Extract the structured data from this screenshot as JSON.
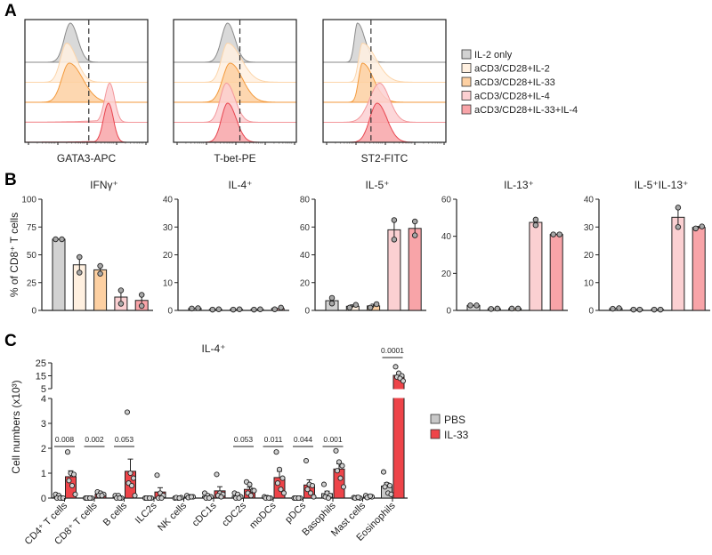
{
  "panels": {
    "a": "A",
    "b": "B",
    "c": "C"
  },
  "colors": {
    "groups_fill": [
      "#d2d2d2",
      "#fff0e0",
      "#fdd0a2",
      "#fbd0d2",
      "#f8a4a8"
    ],
    "groups_stroke": [
      "#8a8a8a",
      "#fcd5aa",
      "#f39a3c",
      "#f3979b",
      "#e8454f"
    ],
    "pbs": "#c8c8c8",
    "il33": "#ee4449"
  },
  "chart_data": [
    {
      "type": "area",
      "title": "",
      "description_units": "relative log fluorescence (0-100)",
      "legend_position": "right",
      "legend": [
        "IL-2 only",
        "aCD3/CD28+IL-2",
        "aCD3/CD28+IL-33",
        "aCD3/CD28+IL-4",
        "aCD3/CD28+IL-33+IL-4"
      ],
      "histograms": [
        {
          "xlabel": "GATA3-APC",
          "gate": 52,
          "series": [
            {
              "mu": 37,
              "sl": 5,
              "sr": 6
            },
            {
              "mu": 34,
              "sl": 5,
              "sr": 8
            },
            {
              "mu": 36,
              "sl": 6,
              "sr": 11
            },
            {
              "mu": 69,
              "sl": 4,
              "sr": 4,
              "tail": 0.06
            },
            {
              "mu": 68,
              "sl": 4,
              "sr": 4,
              "tail": 0.03
            }
          ]
        },
        {
          "xlabel": "T-bet-PE",
          "gate": 54,
          "series": [
            {
              "mu": 44,
              "sl": 5,
              "sr": 6
            },
            {
              "mu": 44,
              "sl": 5,
              "sr": 11
            },
            {
              "mu": 46,
              "sl": 6,
              "sr": 10
            },
            {
              "mu": 43,
              "sl": 5,
              "sr": 7
            },
            {
              "mu": 44,
              "sl": 5,
              "sr": 7
            }
          ]
        },
        {
          "xlabel": "ST2-FITC",
          "gate": 39,
          "series": [
            {
              "mu": 28,
              "sl": 2.5,
              "sr": 6
            },
            {
              "mu": 32,
              "sl": 3,
              "sr": 11
            },
            {
              "mu": 32,
              "sl": 3,
              "sr": 9
            },
            {
              "mu": 46,
              "sl": 8,
              "sr": 8
            },
            {
              "mu": 44,
              "sl": 6,
              "sr": 8
            }
          ]
        }
      ]
    },
    {
      "type": "bar",
      "ylabel": "% of CD8⁺ T cells",
      "subplots": [
        {
          "title": "IFNγ⁺",
          "ylim": [
            0,
            100
          ],
          "yticks": [
            0,
            25,
            50,
            75,
            100
          ],
          "points": [
            [
              64,
              64
            ],
            [
              48,
              34
            ],
            [
              40,
              33
            ],
            [
              18,
              6
            ],
            [
              14,
              4
            ]
          ]
        },
        {
          "title": "IL-4⁺",
          "ylim": [
            0,
            40
          ],
          "yticks": [
            0,
            10,
            20,
            30,
            40
          ],
          "points": [
            [
              0.7,
              0.8
            ],
            [
              0.3,
              0.4
            ],
            [
              0.3,
              0.4
            ],
            [
              0.3,
              0.4
            ],
            [
              0.4,
              1.0
            ]
          ]
        },
        {
          "title": "IL-5⁺",
          "ylim": [
            0,
            80
          ],
          "yticks": [
            0,
            20,
            40,
            60,
            80
          ],
          "points": [
            [
              9,
              5
            ],
            [
              2,
              4
            ],
            [
              2,
              4.5
            ],
            [
              65,
              51
            ],
            [
              64,
              54
            ]
          ]
        },
        {
          "title": "IL-13⁺",
          "ylim": [
            0,
            60
          ],
          "yticks": [
            0,
            20,
            40,
            60
          ],
          "points": [
            [
              2.7,
              2.7
            ],
            [
              0.8,
              1.0
            ],
            [
              1.0,
              1.0
            ],
            [
              49,
              46
            ],
            [
              41,
              41
            ]
          ]
        },
        {
          "title": "IL-5⁺IL-13⁺",
          "ylim": [
            0,
            40
          ],
          "yticks": [
            0,
            10,
            20,
            30,
            40
          ],
          "points": [
            [
              0.6,
              0.8
            ],
            [
              0.3,
              0.3
            ],
            [
              0.3,
              0.3
            ],
            [
              37,
              30
            ],
            [
              29.5,
              30.2
            ]
          ]
        }
      ]
    },
    {
      "type": "bar",
      "title": "IL-4⁺",
      "ylabel": "Cell numbers (x10³)",
      "ylim_lower": [
        0,
        4
      ],
      "yticks_lower": [
        0,
        1,
        2,
        3,
        4
      ],
      "ylim_upper": [
        5,
        25
      ],
      "yticks_upper": [
        5,
        15,
        25
      ],
      "legend": [
        "PBS",
        "IL-33"
      ],
      "legend_position": "right",
      "categories": [
        "CD4⁺ T cells",
        "CD8⁺ T cells",
        "B cells",
        "ILC2s",
        "NK cells",
        "cDC1s",
        "cDC2s",
        "moDCs",
        "pDCs",
        "Basophils",
        "Mast cells",
        "Eosinophils"
      ],
      "pvalues": [
        "0.008",
        "0.002",
        "0.053",
        "",
        "",
        "",
        "0.053",
        "0.011",
        "0.044",
        "0.001",
        "",
        "0.0001"
      ],
      "pbs_points": [
        [
          0.15,
          0.1,
          0,
          0,
          0,
          0
        ],
        [
          0,
          0,
          0,
          0,
          0
        ],
        [
          0.1,
          0.1,
          0,
          0,
          0
        ],
        [
          0,
          0,
          0,
          0,
          0
        ],
        [
          0,
          0,
          0.02,
          0.02,
          0
        ],
        [
          0.2,
          0.1,
          0.05,
          0,
          0
        ],
        [
          0.2,
          0.15,
          0.05,
          0,
          0
        ],
        [
          0.05,
          0.02,
          0,
          0,
          0
        ],
        [
          0,
          0,
          0,
          0,
          0
        ],
        [
          0.55,
          0.2,
          0.1,
          0.05,
          0
        ],
        [
          0.02,
          0.02,
          0,
          0,
          0.03
        ],
        [
          1.05,
          0.55,
          0.5,
          0.45,
          0.2,
          0.15
        ]
      ],
      "il33_points": [
        [
          1.85,
          1.0,
          0.95,
          0.7,
          0.5,
          0.15
        ],
        [
          0.25,
          0.2,
          0.15,
          0.1,
          0.1
        ],
        [
          3.45,
          1.0,
          0.8,
          0.6,
          0.5,
          0.1
        ],
        [
          0.92,
          0.2,
          0.1,
          0,
          0
        ],
        [
          0.1,
          0.05,
          0.05,
          0.02,
          0.05
        ],
        [
          0.95,
          0.2,
          0.15,
          0.1,
          0.05
        ],
        [
          0.65,
          0.55,
          0.3,
          0.2,
          0.1,
          0.3
        ],
        [
          1.85,
          1.15,
          0.8,
          0.6,
          0.35,
          0.2
        ],
        [
          1.5,
          0.55,
          0.5,
          0.35,
          0.2,
          0.05
        ],
        [
          1.9,
          1.45,
          1.3,
          1.1,
          0.8,
          0.45
        ],
        [
          0.1,
          0.05,
          0.05,
          0.02,
          0.08
        ],
        [
          22,
          17,
          15,
          14,
          13,
          11
        ]
      ]
    }
  ]
}
